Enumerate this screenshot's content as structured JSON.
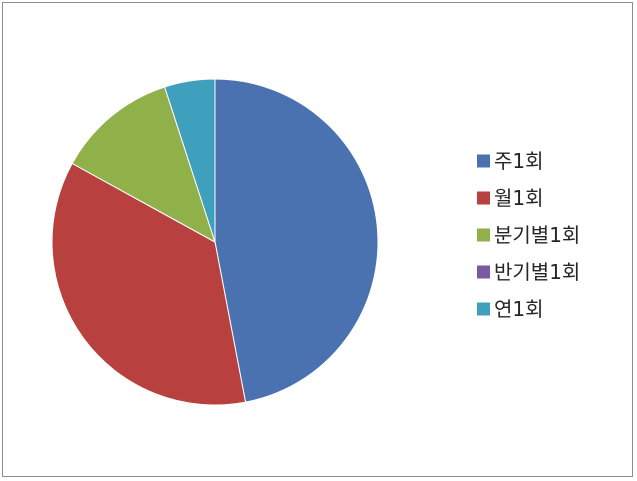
{
  "chart_data": {
    "type": "pie",
    "title": "",
    "categories": [
      "주1회",
      "월1회",
      "분기별1회",
      "반기별1회",
      "연1회"
    ],
    "values": [
      47,
      36,
      12,
      0,
      5
    ],
    "colors": [
      "#4a72b0",
      "#b8403f",
      "#90b04a",
      "#7a5a9e",
      "#3fa0bd"
    ],
    "legend_position": "right",
    "start_angle_deg": 0,
    "direction": "clockwise"
  }
}
